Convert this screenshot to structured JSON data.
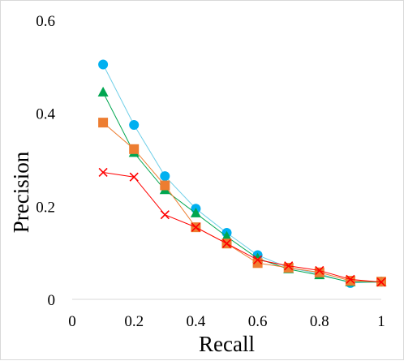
{
  "chart_data": {
    "type": "line",
    "xlabel": "Recall",
    "ylabel": "Precision",
    "xlim": [
      0,
      1
    ],
    "ylim": [
      0,
      0.6
    ],
    "x_ticks": [
      0,
      0.2,
      0.4,
      0.6,
      0.8,
      1
    ],
    "x_tick_labels": [
      "0",
      "0.2",
      "0.4",
      "0.6",
      "0.8",
      "1"
    ],
    "y_ticks": [
      0,
      0.2,
      0.4,
      0.6
    ],
    "y_tick_labels": [
      "0",
      "0.2",
      "0.4",
      "0.6"
    ],
    "grid": false,
    "legend": "none",
    "series": [
      {
        "marker": "circle",
        "color": "#00b0f0",
        "line_color": "#6fcfe8",
        "x": [
          0.1,
          0.2,
          0.3,
          0.4,
          0.5,
          0.6,
          0.7,
          0.8,
          0.9,
          1.0
        ],
        "y": [
          0.505,
          0.375,
          0.265,
          0.195,
          0.143,
          0.095,
          0.068,
          0.055,
          0.035,
          0.038
        ]
      },
      {
        "marker": "triangle",
        "color": "#00a650",
        "line_color": "#00a650",
        "x": [
          0.1,
          0.2,
          0.3,
          0.4,
          0.5,
          0.6,
          0.7,
          0.8,
          0.9,
          1.0
        ],
        "y": [
          0.445,
          0.315,
          0.235,
          0.185,
          0.135,
          0.088,
          0.065,
          0.052,
          0.037,
          0.037
        ]
      },
      {
        "marker": "square",
        "color": "#ed7d31",
        "line_color": "#ed7d31",
        "x": [
          0.1,
          0.2,
          0.3,
          0.4,
          0.5,
          0.6,
          0.7,
          0.8,
          0.9,
          1.0
        ],
        "y": [
          0.38,
          0.323,
          0.245,
          0.155,
          0.12,
          0.078,
          0.068,
          0.058,
          0.04,
          0.038
        ]
      },
      {
        "marker": "x",
        "color": "#ff0000",
        "line_color": "#ff0000",
        "x": [
          0.1,
          0.2,
          0.3,
          0.4,
          0.5,
          0.6,
          0.7,
          0.8,
          0.9,
          1.0
        ],
        "y": [
          0.273,
          0.263,
          0.182,
          0.155,
          0.12,
          0.085,
          0.072,
          0.062,
          0.043,
          0.037
        ]
      }
    ]
  }
}
